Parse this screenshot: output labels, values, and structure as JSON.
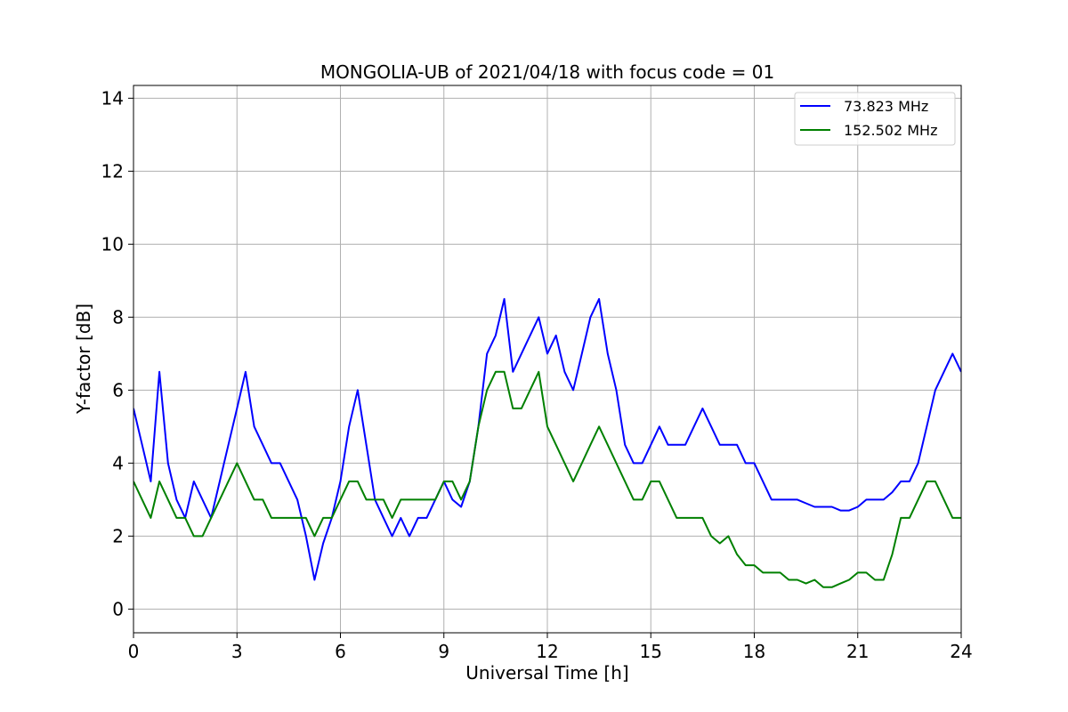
{
  "chart_data": {
    "type": "line",
    "title": "MONGOLIA-UB of 2021/04/18 with focus code = 01",
    "xlabel": "Universal Time [h]",
    "ylabel": "Y-factor [dB]",
    "xlim": [
      0,
      24
    ],
    "ylim": [
      -0.65,
      14.35
    ],
    "xticks": [
      0,
      3,
      6,
      9,
      12,
      15,
      18,
      21,
      24
    ],
    "yticks": [
      0,
      2,
      4,
      6,
      8,
      10,
      12,
      14
    ],
    "grid": true,
    "legend_position": "top-right",
    "series": [
      {
        "name": "73.823 MHz",
        "color": "#0000ff",
        "x": [
          0,
          0.25,
          0.5,
          0.75,
          1,
          1.25,
          1.5,
          1.75,
          2,
          2.25,
          2.5,
          2.75,
          3,
          3.25,
          3.5,
          3.75,
          4,
          4.25,
          4.5,
          4.75,
          5,
          5.25,
          5.5,
          5.75,
          6,
          6.25,
          6.5,
          6.75,
          7,
          7.25,
          7.5,
          7.75,
          8,
          8.25,
          8.5,
          8.75,
          9,
          9.25,
          9.5,
          9.75,
          10,
          10.25,
          10.5,
          10.75,
          11,
          11.25,
          11.5,
          11.75,
          12,
          12.25,
          12.5,
          12.75,
          13,
          13.25,
          13.5,
          13.75,
          14,
          14.25,
          14.5,
          14.75,
          15,
          15.25,
          15.5,
          15.75,
          16,
          16.25,
          16.5,
          16.75,
          17,
          17.25,
          17.5,
          17.75,
          18,
          18.25,
          18.5,
          18.75,
          19,
          19.25,
          19.5,
          19.75,
          20,
          20.25,
          20.5,
          20.75,
          21,
          21.25,
          21.5,
          21.75,
          22,
          22.25,
          22.5,
          22.75,
          23,
          23.25,
          23.5,
          23.75,
          24
        ],
        "values": [
          5.5,
          4.5,
          3.5,
          6.5,
          4.0,
          3.0,
          2.5,
          3.5,
          3.0,
          2.5,
          3.5,
          4.5,
          5.5,
          6.5,
          5.0,
          4.5,
          4.0,
          4.0,
          3.5,
          3.0,
          2.0,
          0.8,
          1.8,
          2.5,
          3.5,
          5.0,
          6.0,
          4.5,
          3.0,
          2.5,
          2.0,
          2.5,
          2.0,
          2.5,
          2.5,
          3.0,
          3.5,
          3.0,
          2.8,
          3.5,
          5.0,
          7.0,
          7.5,
          8.5,
          6.5,
          7.0,
          7.5,
          8.0,
          7.0,
          7.5,
          6.5,
          6.0,
          7.0,
          8.0,
          8.5,
          7.0,
          6.0,
          4.5,
          4.0,
          4.0,
          4.5,
          5.0,
          4.5,
          4.5,
          4.5,
          5.0,
          5.5,
          5.0,
          4.5,
          4.5,
          4.5,
          4.0,
          4.0,
          3.5,
          3.0,
          3.0,
          3.0,
          3.0,
          2.9,
          2.8,
          2.8,
          2.8,
          2.7,
          2.7,
          2.8,
          3.0,
          3.0,
          3.0,
          3.2,
          3.5,
          3.5,
          4.0,
          5.0,
          6.0,
          6.5,
          7.0,
          6.5
        ]
      },
      {
        "name": "152.502 MHz",
        "color": "#008000",
        "x": [
          0,
          0.25,
          0.5,
          0.75,
          1,
          1.25,
          1.5,
          1.75,
          2,
          2.25,
          2.5,
          2.75,
          3,
          3.25,
          3.5,
          3.75,
          4,
          4.25,
          4.5,
          4.75,
          5,
          5.25,
          5.5,
          5.75,
          6,
          6.25,
          6.5,
          6.75,
          7,
          7.25,
          7.5,
          7.75,
          8,
          8.25,
          8.5,
          8.75,
          9,
          9.25,
          9.5,
          9.75,
          10,
          10.25,
          10.5,
          10.75,
          11,
          11.25,
          11.5,
          11.75,
          12,
          12.25,
          12.5,
          12.75,
          13,
          13.25,
          13.5,
          13.75,
          14,
          14.25,
          14.5,
          14.75,
          15,
          15.25,
          15.5,
          15.75,
          16,
          16.25,
          16.5,
          16.75,
          17,
          17.25,
          17.5,
          17.75,
          18,
          18.25,
          18.5,
          18.75,
          19,
          19.25,
          19.5,
          19.75,
          20,
          20.25,
          20.5,
          20.75,
          21,
          21.25,
          21.5,
          21.75,
          22,
          22.25,
          22.5,
          22.75,
          23,
          23.25,
          23.5,
          23.75,
          24
        ],
        "values": [
          3.5,
          3.0,
          2.5,
          3.5,
          3.0,
          2.5,
          2.5,
          2.0,
          2.0,
          2.5,
          3.0,
          3.5,
          4.0,
          3.5,
          3.0,
          3.0,
          2.5,
          2.5,
          2.5,
          2.5,
          2.5,
          2.0,
          2.5,
          2.5,
          3.0,
          3.5,
          3.5,
          3.0,
          3.0,
          3.0,
          2.5,
          3.0,
          3.0,
          3.0,
          3.0,
          3.0,
          3.5,
          3.5,
          3.0,
          3.5,
          5.0,
          6.0,
          6.5,
          6.5,
          5.5,
          5.5,
          6.0,
          6.5,
          5.0,
          4.5,
          4.0,
          3.5,
          4.0,
          4.5,
          5.0,
          4.5,
          4.0,
          3.5,
          3.0,
          3.0,
          3.5,
          3.5,
          3.0,
          2.5,
          2.5,
          2.5,
          2.5,
          2.0,
          1.8,
          2.0,
          1.5,
          1.2,
          1.2,
          1.0,
          1.0,
          1.0,
          0.8,
          0.8,
          0.7,
          0.8,
          0.6,
          0.6,
          0.7,
          0.8,
          1.0,
          1.0,
          0.8,
          0.8,
          1.5,
          2.5,
          2.5,
          3.0,
          3.5,
          3.5,
          3.0,
          2.5,
          2.5
        ]
      }
    ]
  }
}
